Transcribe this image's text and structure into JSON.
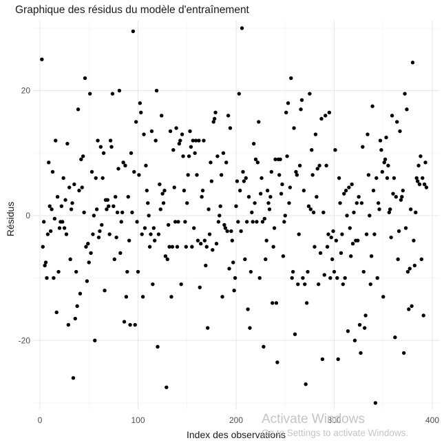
{
  "chart_data": {
    "type": "scatter",
    "title": "Graphique des résidus du modèle d'entraînement",
    "xlabel": "Index des observations",
    "ylabel": "Résidus",
    "xlim": [
      -7,
      407
    ],
    "ylim": [
      -31,
      31.2
    ],
    "xticks": [
      0,
      100,
      200,
      300,
      400
    ],
    "yticks": [
      -20,
      0,
      20
    ],
    "grid": true,
    "point_color": "#000000",
    "points": [
      [
        2,
        25
      ],
      [
        3,
        -5
      ],
      [
        4,
        -1
      ],
      [
        5,
        -8
      ],
      [
        6,
        -7.5
      ],
      [
        7,
        -10
      ],
      [
        8,
        -3
      ],
      [
        9,
        8.5
      ],
      [
        10,
        1.5
      ],
      [
        11,
        -2.5
      ],
      [
        12,
        1
      ],
      [
        13,
        7
      ],
      [
        14,
        -10
      ],
      [
        15,
        -0.5
      ],
      [
        16,
        12
      ],
      [
        17,
        -15.5
      ],
      [
        18,
        3
      ],
      [
        19,
        -9
      ],
      [
        20,
        -2
      ],
      [
        21,
        -1
      ],
      [
        22,
        1.5
      ],
      [
        23,
        -1
      ],
      [
        24,
        6
      ],
      [
        25,
        -2
      ],
      [
        26,
        2.5
      ],
      [
        27,
        -3
      ],
      [
        28,
        11.5
      ],
      [
        29,
        -17.5
      ],
      [
        30,
        4.5
      ],
      [
        31,
        -7
      ],
      [
        32,
        1
      ],
      [
        33,
        2
      ],
      [
        34,
        -26
      ],
      [
        35,
        5
      ],
      [
        36,
        -16.5
      ],
      [
        37,
        -9
      ],
      [
        38,
        -14.5
      ],
      [
        39,
        17
      ],
      [
        40,
        4
      ],
      [
        41,
        -12.5
      ],
      [
        42,
        9
      ],
      [
        43,
        4.5
      ],
      [
        44,
        9.5
      ],
      [
        45,
        0.5
      ],
      [
        46,
        22
      ],
      [
        47,
        -5
      ],
      [
        48,
        -10.5
      ],
      [
        49,
        -4.5
      ],
      [
        50,
        -7.5
      ],
      [
        51,
        19.5
      ],
      [
        52,
        -6
      ],
      [
        53,
        7
      ],
      [
        54,
        -3
      ],
      [
        55,
        0
      ],
      [
        56,
        -20
      ],
      [
        57,
        6
      ],
      [
        58,
        1
      ],
      [
        59,
        12
      ],
      [
        60,
        -3.5
      ],
      [
        61,
        -2.5
      ],
      [
        62,
        11
      ],
      [
        63,
        -1.5
      ],
      [
        64,
        6
      ],
      [
        65,
        10
      ],
      [
        66,
        -12
      ],
      [
        67,
        2.5
      ],
      [
        68,
        1
      ],
      [
        69,
        2.5
      ],
      [
        70,
        1.5
      ],
      [
        71,
        -3
      ],
      [
        72,
        12
      ],
      [
        73,
        11
      ],
      [
        74,
        19.5
      ],
      [
        75,
        1.5
      ],
      [
        76,
        -7
      ],
      [
        77,
        3
      ],
      [
        78,
        -3.5
      ],
      [
        79,
        0.5
      ],
      [
        80,
        7.5
      ],
      [
        81,
        20
      ],
      [
        82,
        -6
      ],
      [
        83,
        -1
      ],
      [
        84,
        0.5
      ],
      [
        85,
        8.5
      ],
      [
        86,
        -17
      ],
      [
        87,
        8
      ],
      [
        88,
        -13
      ],
      [
        89,
        -9
      ],
      [
        90,
        3
      ],
      [
        91,
        -4
      ],
      [
        92,
        -17.5
      ],
      [
        93,
        10
      ],
      [
        94,
        0.5
      ],
      [
        95,
        29.5
      ],
      [
        96,
        7
      ],
      [
        97,
        -17.5
      ],
      [
        98,
        15
      ],
      [
        99,
        -1
      ],
      [
        100,
        -9
      ],
      [
        101,
        6.5
      ],
      [
        102,
        18
      ],
      [
        103,
        16.5
      ],
      [
        104,
        -3
      ],
      [
        105,
        -13
      ],
      [
        106,
        13
      ],
      [
        107,
        -2
      ],
      [
        108,
        8
      ],
      [
        109,
        4
      ],
      [
        110,
        2
      ],
      [
        111,
        0
      ],
      [
        112,
        -5
      ],
      [
        113,
        -3
      ],
      [
        114,
        13.5
      ],
      [
        115,
        -11
      ],
      [
        116,
        -2
      ],
      [
        117,
        -4
      ],
      [
        118,
        12
      ],
      [
        119,
        20
      ],
      [
        120,
        -21
      ],
      [
        121,
        -3
      ],
      [
        122,
        5
      ],
      [
        123,
        1
      ],
      [
        124,
        16
      ],
      [
        125,
        3.5
      ],
      [
        126,
        2
      ],
      [
        127,
        4
      ],
      [
        128,
        -6.5
      ],
      [
        129,
        -27.5
      ],
      [
        130,
        -7
      ],
      [
        131,
        -1.5
      ],
      [
        132,
        -5
      ],
      [
        133,
        13.5
      ],
      [
        134,
        -13
      ],
      [
        135,
        -5
      ],
      [
        136,
        10.5
      ],
      [
        137,
        4.5
      ],
      [
        138,
        -1
      ],
      [
        139,
        14
      ],
      [
        140,
        -5
      ],
      [
        141,
        -1
      ],
      [
        142,
        11.5
      ],
      [
        143,
        12
      ],
      [
        144,
        -11
      ],
      [
        145,
        13
      ],
      [
        146,
        9.5
      ],
      [
        147,
        4
      ],
      [
        148,
        -1
      ],
      [
        149,
        -5
      ],
      [
        150,
        2
      ],
      [
        151,
        6.5
      ],
      [
        152,
        9.5
      ],
      [
        153,
        13.5
      ],
      [
        154,
        11
      ],
      [
        155,
        -5
      ],
      [
        156,
        12
      ],
      [
        157,
        -2
      ],
      [
        158,
        10
      ],
      [
        159,
        12
      ],
      [
        160,
        6.5
      ],
      [
        161,
        -4
      ],
      [
        162,
        12
      ],
      [
        163,
        -11.5
      ],
      [
        164,
        -4.5
      ],
      [
        165,
        3
      ],
      [
        166,
        4
      ],
      [
        167,
        12
      ],
      [
        168,
        -4
      ],
      [
        169,
        -8
      ],
      [
        170,
        -5
      ],
      [
        171,
        -18
      ],
      [
        172,
        1
      ],
      [
        173,
        -3
      ],
      [
        174,
        8.5
      ],
      [
        175,
        5.5
      ],
      [
        176,
        -5.5
      ],
      [
        177,
        15
      ],
      [
        178,
        15.5
      ],
      [
        179,
        16.5
      ],
      [
        180,
        -4.5
      ],
      [
        181,
        9.5
      ],
      [
        182,
        -1
      ],
      [
        183,
        0
      ],
      [
        184,
        1.5
      ],
      [
        185,
        6.5
      ],
      [
        186,
        -13
      ],
      [
        187,
        10
      ],
      [
        188,
        -1.5
      ],
      [
        189,
        -2
      ],
      [
        190,
        8.5
      ],
      [
        191,
        -2.5
      ],
      [
        192,
        16
      ],
      [
        193,
        -8.5
      ],
      [
        194,
        14
      ],
      [
        195,
        -2.5
      ],
      [
        196,
        -4
      ],
      [
        197,
        -7.5
      ],
      [
        198,
        -12
      ],
      [
        199,
        -10
      ],
      [
        200,
        1.5
      ],
      [
        201,
        5.5
      ],
      [
        202,
        -1
      ],
      [
        203,
        19.5
      ],
      [
        204,
        4
      ],
      [
        205,
        -2.5
      ],
      [
        206,
        30
      ],
      [
        207,
        7
      ],
      [
        208,
        5.5
      ],
      [
        209,
        -7
      ],
      [
        210,
        6
      ],
      [
        211,
        -1
      ],
      [
        212,
        -15
      ],
      [
        213,
        3
      ],
      [
        214,
        -18
      ],
      [
        215,
        -9
      ],
      [
        216,
        0.5
      ],
      [
        217,
        -1
      ],
      [
        218,
        11.5
      ],
      [
        219,
        2
      ],
      [
        220,
        9
      ],
      [
        221,
        -1
      ],
      [
        222,
        8.5
      ],
      [
        223,
        15
      ],
      [
        224,
        -10
      ],
      [
        225,
        3.5
      ],
      [
        226,
        6
      ],
      [
        227,
        -1
      ],
      [
        228,
        -21
      ],
      [
        229,
        -0.5
      ],
      [
        230,
        -7
      ],
      [
        231,
        -4
      ],
      [
        232,
        4
      ],
      [
        233,
        2
      ],
      [
        234,
        1
      ],
      [
        235,
        3
      ],
      [
        236,
        7
      ],
      [
        237,
        -14
      ],
      [
        238,
        -5
      ],
      [
        239,
        -2
      ],
      [
        240,
        9
      ],
      [
        241,
        -14
      ],
      [
        242,
        -23.5
      ],
      [
        243,
        9
      ],
      [
        244,
        6.5
      ],
      [
        245,
        9
      ],
      [
        246,
        3.5
      ],
      [
        247,
        5
      ],
      [
        248,
        -6.5
      ],
      [
        249,
        -1
      ],
      [
        250,
        0
      ],
      [
        251,
        16.5
      ],
      [
        252,
        9.5
      ],
      [
        253,
        18
      ],
      [
        254,
        2
      ],
      [
        255,
        4.5
      ],
      [
        256,
        22
      ],
      [
        257,
        -10
      ],
      [
        258,
        -9
      ],
      [
        259,
        14
      ],
      [
        260,
        -19
      ],
      [
        261,
        7
      ],
      [
        262,
        6.5
      ],
      [
        263,
        -11
      ],
      [
        264,
        -3
      ],
      [
        265,
        8
      ],
      [
        266,
        17
      ],
      [
        267,
        18.5
      ],
      [
        268,
        -10
      ],
      [
        269,
        4
      ],
      [
        270,
        -11
      ],
      [
        271,
        -27
      ],
      [
        272,
        -14
      ],
      [
        273,
        -9
      ],
      [
        274,
        1.5
      ],
      [
        275,
        19.5
      ],
      [
        276,
        1
      ],
      [
        277,
        10.5
      ],
      [
        278,
        6.5
      ],
      [
        279,
        0.5
      ],
      [
        280,
        -5
      ],
      [
        281,
        13
      ],
      [
        282,
        3
      ],
      [
        283,
        7.5
      ],
      [
        284,
        -11
      ],
      [
        285,
        8
      ],
      [
        286,
        -6
      ],
      [
        287,
        15.5
      ],
      [
        288,
        -23
      ],
      [
        289,
        0.5
      ],
      [
        290,
        -9.5
      ],
      [
        291,
        16
      ],
      [
        292,
        8
      ],
      [
        293,
        -5
      ],
      [
        294,
        -3
      ],
      [
        295,
        16.5
      ],
      [
        296,
        -10
      ],
      [
        297,
        -3.5
      ],
      [
        298,
        -7
      ],
      [
        299,
        -2.5
      ],
      [
        300,
        -9
      ],
      [
        301,
        10.5
      ],
      [
        302,
        -4
      ],
      [
        303,
        -10
      ],
      [
        304,
        -23
      ],
      [
        305,
        6
      ],
      [
        306,
        2
      ],
      [
        307,
        -6
      ],
      [
        308,
        -3
      ],
      [
        309,
        -11
      ],
      [
        310,
        3.5
      ],
      [
        311,
        -10
      ],
      [
        312,
        4
      ],
      [
        313,
        0
      ],
      [
        314,
        -18.5
      ],
      [
        315,
        4.5
      ],
      [
        316,
        -2
      ],
      [
        317,
        -6.5
      ],
      [
        318,
        5
      ],
      [
        319,
        -4.5
      ],
      [
        320,
        0.5
      ],
      [
        321,
        -20
      ],
      [
        322,
        -4
      ],
      [
        323,
        2
      ],
      [
        324,
        -4
      ],
      [
        325,
        3
      ],
      [
        326,
        -17.5
      ],
      [
        327,
        -22
      ],
      [
        328,
        2
      ],
      [
        329,
        11
      ],
      [
        330,
        -9
      ],
      [
        331,
        -18
      ],
      [
        332,
        -16
      ],
      [
        333,
        -3
      ],
      [
        334,
        13
      ],
      [
        335,
        6.5
      ],
      [
        336,
        0
      ],
      [
        337,
        -11
      ],
      [
        338,
        -6.5
      ],
      [
        339,
        17.5
      ],
      [
        340,
        4
      ],
      [
        341,
        -3
      ],
      [
        342,
        -30
      ],
      [
        343,
        6
      ],
      [
        344,
        -10
      ],
      [
        345,
        2
      ],
      [
        346,
        1
      ],
      [
        347,
        12
      ],
      [
        348,
        10.5
      ],
      [
        349,
        7
      ],
      [
        350,
        -13
      ],
      [
        351,
        8.5
      ],
      [
        352,
        9
      ],
      [
        353,
        12.5
      ],
      [
        354,
        6
      ],
      [
        355,
        8
      ],
      [
        356,
        0.5
      ],
      [
        357,
        1
      ],
      [
        358,
        -3.5
      ],
      [
        359,
        16
      ],
      [
        360,
        3.5
      ],
      [
        361,
        6
      ],
      [
        362,
        -19.5
      ],
      [
        363,
        3
      ],
      [
        364,
        15
      ],
      [
        365,
        -7
      ],
      [
        366,
        -2.5
      ],
      [
        367,
        13.5
      ],
      [
        368,
        2.5
      ],
      [
        369,
        3
      ],
      [
        370,
        4
      ],
      [
        371,
        -22
      ],
      [
        372,
        19.5
      ],
      [
        373,
        -2
      ],
      [
        374,
        17
      ],
      [
        375,
        -9
      ],
      [
        376,
        -15
      ],
      [
        377,
        -8.5
      ],
      [
        378,
        1
      ],
      [
        379,
        -14.5
      ],
      [
        380,
        24.5
      ],
      [
        381,
        -4
      ],
      [
        382,
        -8
      ],
      [
        383,
        0.5
      ],
      [
        384,
        6
      ],
      [
        385,
        5.5
      ],
      [
        386,
        8
      ],
      [
        387,
        5
      ],
      [
        388,
        9.5
      ],
      [
        389,
        -7
      ],
      [
        390,
        6
      ],
      [
        391,
        -16
      ],
      [
        392,
        5
      ],
      [
        393,
        8.5
      ],
      [
        394,
        4.5
      ]
    ]
  },
  "watermark": {
    "line1": "Activate Windows",
    "line2": "Go to Settings to activate Windows."
  }
}
